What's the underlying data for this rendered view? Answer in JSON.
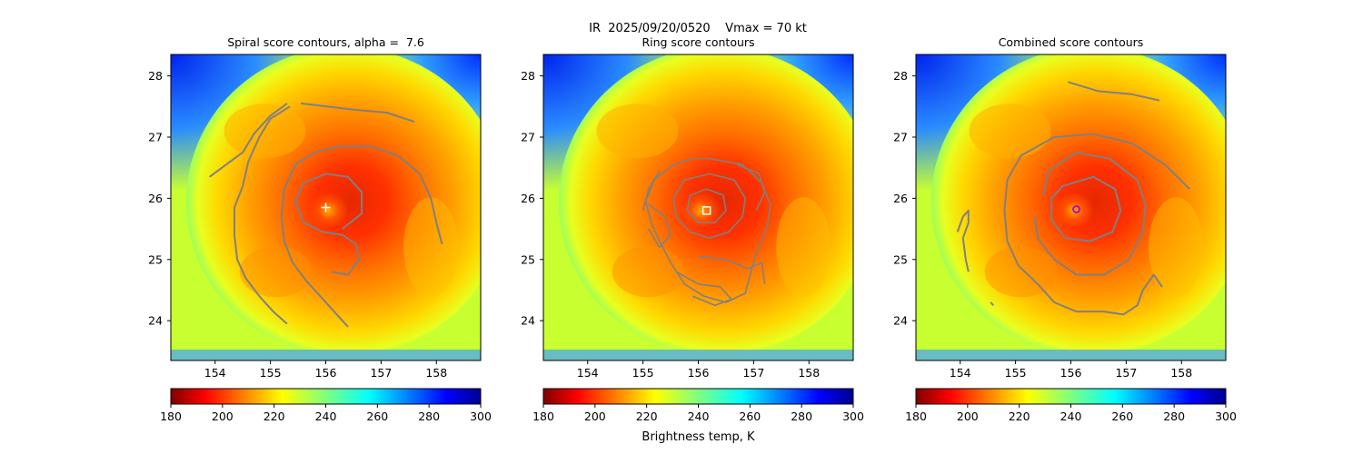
{
  "figure": {
    "suptitle": "IR  2025/09/20/0520    Vmax = 70 kt",
    "colorbar_label": "Brightness temp, K"
  },
  "chart_data": [
    {
      "type": "heatmap",
      "title": "Spiral score contours, alpha =  7.6",
      "xlim": [
        153.2,
        158.8
      ],
      "ylim": [
        23.35,
        28.35
      ],
      "xticks": [
        154,
        155,
        156,
        157,
        158
      ],
      "yticks": [
        24,
        25,
        26,
        27,
        28
      ],
      "colormap": "jet",
      "clim": [
        180,
        300
      ],
      "colorbar_ticks": [
        180,
        200,
        220,
        240,
        260,
        280,
        300
      ],
      "center_marker": {
        "type": "plus",
        "color": "#ffffff",
        "x": 156.0,
        "y": 25.85
      },
      "contours": [
        [
          [
            156.25,
            26.85
          ],
          [
            156.8,
            26.85
          ],
          [
            157.3,
            26.7
          ],
          [
            157.7,
            26.4
          ],
          [
            157.9,
            26.0
          ],
          [
            158.0,
            25.6
          ],
          [
            158.1,
            25.25
          ]
        ],
        [
          [
            156.25,
            26.85
          ],
          [
            155.8,
            26.75
          ],
          [
            155.45,
            26.55
          ],
          [
            155.25,
            26.15
          ],
          [
            155.2,
            25.7
          ],
          [
            155.25,
            25.3
          ],
          [
            155.4,
            24.95
          ],
          [
            155.65,
            24.65
          ],
          [
            155.95,
            24.35
          ],
          [
            156.2,
            24.1
          ],
          [
            156.4,
            23.9
          ]
        ],
        [
          [
            155.35,
            27.5
          ],
          [
            155.0,
            27.3
          ],
          [
            154.8,
            27.0
          ],
          [
            154.6,
            26.6
          ],
          [
            154.5,
            26.2
          ],
          [
            154.35,
            25.85
          ],
          [
            154.35,
            25.4
          ],
          [
            154.4,
            25.0
          ],
          [
            154.55,
            24.7
          ],
          [
            154.8,
            24.4
          ],
          [
            155.05,
            24.15
          ],
          [
            155.3,
            23.95
          ]
        ],
        [
          [
            155.55,
            27.55
          ],
          [
            156.5,
            27.45
          ],
          [
            157.1,
            27.4
          ],
          [
            157.6,
            27.25
          ]
        ],
        [
          [
            155.3,
            27.55
          ],
          [
            155.0,
            27.35
          ],
          [
            154.7,
            27.05
          ],
          [
            154.5,
            26.75
          ],
          [
            154.2,
            26.55
          ],
          [
            153.9,
            26.35
          ]
        ],
        [
          [
            156.3,
            25.5
          ],
          [
            156.65,
            25.75
          ],
          [
            156.65,
            26.1
          ],
          [
            156.4,
            26.35
          ],
          [
            156.0,
            26.4
          ],
          [
            155.6,
            26.25
          ],
          [
            155.45,
            25.95
          ],
          [
            155.6,
            25.6
          ],
          [
            155.95,
            25.45
          ],
          [
            156.3,
            25.4
          ],
          [
            156.55,
            25.25
          ],
          [
            156.6,
            25.0
          ],
          [
            156.4,
            24.75
          ],
          [
            156.1,
            24.8
          ]
        ]
      ]
    },
    {
      "type": "heatmap",
      "title": "Ring score contours",
      "xlim": [
        153.2,
        158.8
      ],
      "ylim": [
        23.35,
        28.35
      ],
      "xticks": [
        154,
        155,
        156,
        157,
        158
      ],
      "yticks": [
        24,
        25,
        26,
        27,
        28
      ],
      "colormap": "jet",
      "clim": [
        180,
        300
      ],
      "colorbar_ticks": [
        180,
        200,
        220,
        240,
        260,
        280,
        300
      ],
      "center_marker": {
        "type": "square",
        "color": "#ffffff",
        "x": 156.15,
        "y": 25.8
      },
      "contours": [
        [
          [
            156.2,
            26.65
          ],
          [
            156.8,
            26.55
          ],
          [
            157.15,
            26.25
          ],
          [
            157.3,
            25.9
          ],
          [
            157.25,
            25.55
          ],
          [
            157.05,
            25.1
          ],
          [
            156.95,
            24.8
          ],
          [
            156.85,
            24.45
          ],
          [
            156.5,
            24.3
          ],
          [
            156.1,
            24.4
          ],
          [
            155.75,
            24.6
          ],
          [
            155.5,
            24.95
          ],
          [
            155.3,
            25.3
          ],
          [
            155.15,
            25.6
          ],
          [
            155.05,
            25.95
          ],
          [
            155.2,
            26.3
          ],
          [
            155.55,
            26.55
          ],
          [
            155.9,
            26.65
          ],
          [
            156.2,
            26.65
          ]
        ],
        [
          [
            156.2,
            26.4
          ],
          [
            156.65,
            26.3
          ],
          [
            156.85,
            26.0
          ],
          [
            156.8,
            25.7
          ],
          [
            156.55,
            25.45
          ],
          [
            156.2,
            25.35
          ],
          [
            155.85,
            25.45
          ],
          [
            155.6,
            25.7
          ],
          [
            155.55,
            26.0
          ],
          [
            155.75,
            26.3
          ],
          [
            156.2,
            26.4
          ]
        ],
        [
          [
            156.15,
            26.15
          ],
          [
            156.45,
            26.05
          ],
          [
            156.5,
            25.8
          ],
          [
            156.3,
            25.6
          ],
          [
            156.0,
            25.6
          ],
          [
            155.8,
            25.8
          ],
          [
            155.85,
            26.05
          ],
          [
            156.15,
            26.15
          ]
        ],
        [
          [
            155.1,
            25.9
          ],
          [
            155.4,
            25.7
          ],
          [
            155.5,
            25.4
          ],
          [
            155.3,
            25.2
          ],
          [
            155.1,
            25.5
          ]
        ],
        [
          [
            156.0,
            25.05
          ],
          [
            156.5,
            25.0
          ],
          [
            156.9,
            24.85
          ],
          [
            157.15,
            24.95
          ],
          [
            157.2,
            24.6
          ]
        ],
        [
          [
            155.6,
            24.8
          ],
          [
            156.0,
            24.6
          ],
          [
            156.4,
            24.55
          ],
          [
            156.6,
            24.35
          ],
          [
            156.3,
            24.25
          ],
          [
            155.9,
            24.4
          ]
        ],
        [
          [
            156.7,
            26.55
          ],
          [
            157.1,
            26.4
          ],
          [
            157.2,
            26.1
          ],
          [
            157.05,
            25.8
          ]
        ],
        [
          [
            155.3,
            26.45
          ],
          [
            155.1,
            26.15
          ],
          [
            155.0,
            25.8
          ]
        ]
      ]
    },
    {
      "type": "heatmap",
      "title": "Combined score contours",
      "xlim": [
        153.2,
        158.8
      ],
      "ylim": [
        23.35,
        28.35
      ],
      "xticks": [
        154,
        155,
        156,
        157,
        158
      ],
      "yticks": [
        24,
        25,
        26,
        27,
        28
      ],
      "colormap": "jet",
      "clim": [
        180,
        300
      ],
      "colorbar_ticks": [
        180,
        200,
        220,
        240,
        260,
        280,
        300
      ],
      "center_marker": {
        "type": "circle",
        "color": "#b010c0",
        "x": 156.1,
        "y": 25.82
      },
      "contours": [
        [
          [
            157.6,
            27.6
          ],
          [
            157.1,
            27.7
          ],
          [
            156.5,
            27.75
          ],
          [
            155.95,
            27.9
          ]
        ],
        [
          [
            158.15,
            26.15
          ],
          [
            157.7,
            26.55
          ],
          [
            157.1,
            26.9
          ],
          [
            156.4,
            27.05
          ],
          [
            155.7,
            27.0
          ],
          [
            155.1,
            26.7
          ],
          [
            154.85,
            26.3
          ],
          [
            154.8,
            25.8
          ],
          [
            154.85,
            25.3
          ],
          [
            155.05,
            24.9
          ],
          [
            155.4,
            24.6
          ],
          [
            155.7,
            24.3
          ],
          [
            156.1,
            24.15
          ],
          [
            156.6,
            24.15
          ],
          [
            156.95,
            24.1
          ],
          [
            157.2,
            24.25
          ],
          [
            157.3,
            24.5
          ],
          [
            157.5,
            24.75
          ],
          [
            157.65,
            24.55
          ]
        ],
        [
          [
            155.85,
            26.2
          ],
          [
            156.4,
            26.35
          ],
          [
            156.8,
            26.15
          ],
          [
            156.9,
            25.8
          ],
          [
            156.75,
            25.45
          ],
          [
            156.35,
            25.3
          ],
          [
            155.9,
            25.35
          ],
          [
            155.65,
            25.65
          ],
          [
            155.65,
            26.0
          ],
          [
            155.85,
            26.2
          ]
        ],
        [
          [
            155.5,
            26.05
          ],
          [
            155.6,
            26.45
          ],
          [
            156.1,
            26.75
          ],
          [
            156.7,
            26.65
          ],
          [
            157.2,
            26.3
          ],
          [
            157.35,
            25.9
          ],
          [
            157.3,
            25.45
          ],
          [
            157.05,
            25.0
          ],
          [
            156.6,
            24.75
          ],
          [
            156.1,
            24.75
          ],
          [
            155.7,
            25.0
          ],
          [
            155.4,
            25.35
          ],
          [
            155.35,
            25.7
          ]
        ],
        [
          [
            153.95,
            25.45
          ],
          [
            154.05,
            25.7
          ],
          [
            154.15,
            25.8
          ],
          [
            154.15,
            25.6
          ],
          [
            154.05,
            25.35
          ],
          [
            154.1,
            25.0
          ],
          [
            154.15,
            24.8
          ]
        ],
        [
          [
            154.55,
            24.3
          ],
          [
            154.6,
            24.25
          ]
        ]
      ]
    }
  ]
}
